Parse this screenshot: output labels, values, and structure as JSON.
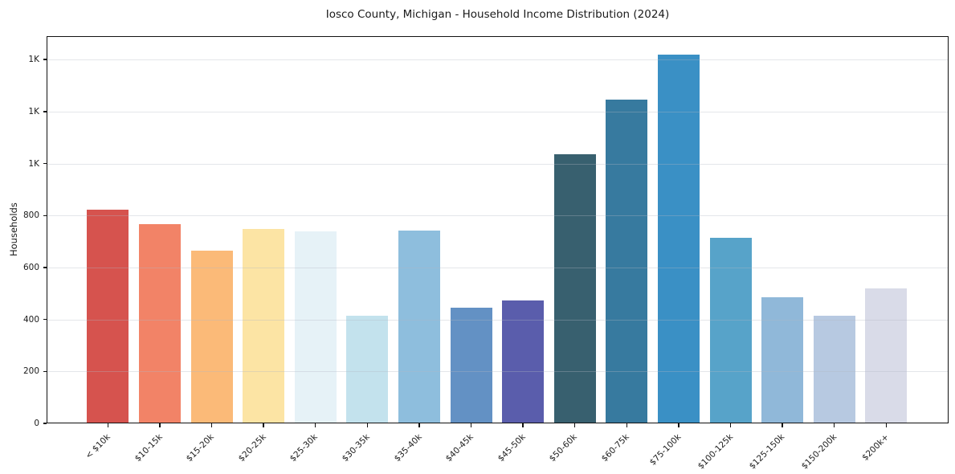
{
  "chart_data": {
    "type": "bar",
    "title": "Iosco County, Michigan - Household Income Distribution (2024)",
    "xlabel": "",
    "ylabel": "Households",
    "categories": [
      "< $10k",
      "$10-15k",
      "$15-20k",
      "$20-25k",
      "$25-30k",
      "$30-35k",
      "$35-40k",
      "$40-45k",
      "$45-50k",
      "$50-60k",
      "$60-75k",
      "$75-100k",
      "$100-125k",
      "$125-150k",
      "$150-200k",
      "$200k+"
    ],
    "values": [
      822,
      768,
      665,
      748,
      740,
      413,
      743,
      446,
      474,
      1037,
      1247,
      1420,
      713,
      486,
      415,
      520
    ],
    "bar_colors": [
      "#d6534e",
      "#f28367",
      "#fbba78",
      "#fce4a4",
      "#e6f2f7",
      "#c3e2ed",
      "#8ebedd",
      "#6391c4",
      "#5a5dac",
      "#38606f",
      "#377a9f",
      "#3a90c5",
      "#57a3c9",
      "#90b8d9",
      "#b7c9e1",
      "#d9dbe8"
    ],
    "ylim": [
      0,
      1490
    ],
    "yticks": {
      "values": [
        0,
        200,
        400,
        600,
        800,
        1000,
        1200,
        1400
      ],
      "labels": [
        "0",
        "200",
        "400",
        "600",
        "800",
        "1K",
        "1K",
        "1K"
      ]
    },
    "grid": "horizontal gridlines, drawn above bars",
    "legend": "none",
    "x_tick_label_rotation_deg": 45,
    "spine_color": "#111111",
    "gridline_color": "#e9e9ee",
    "background_color": "#ffffff"
  }
}
